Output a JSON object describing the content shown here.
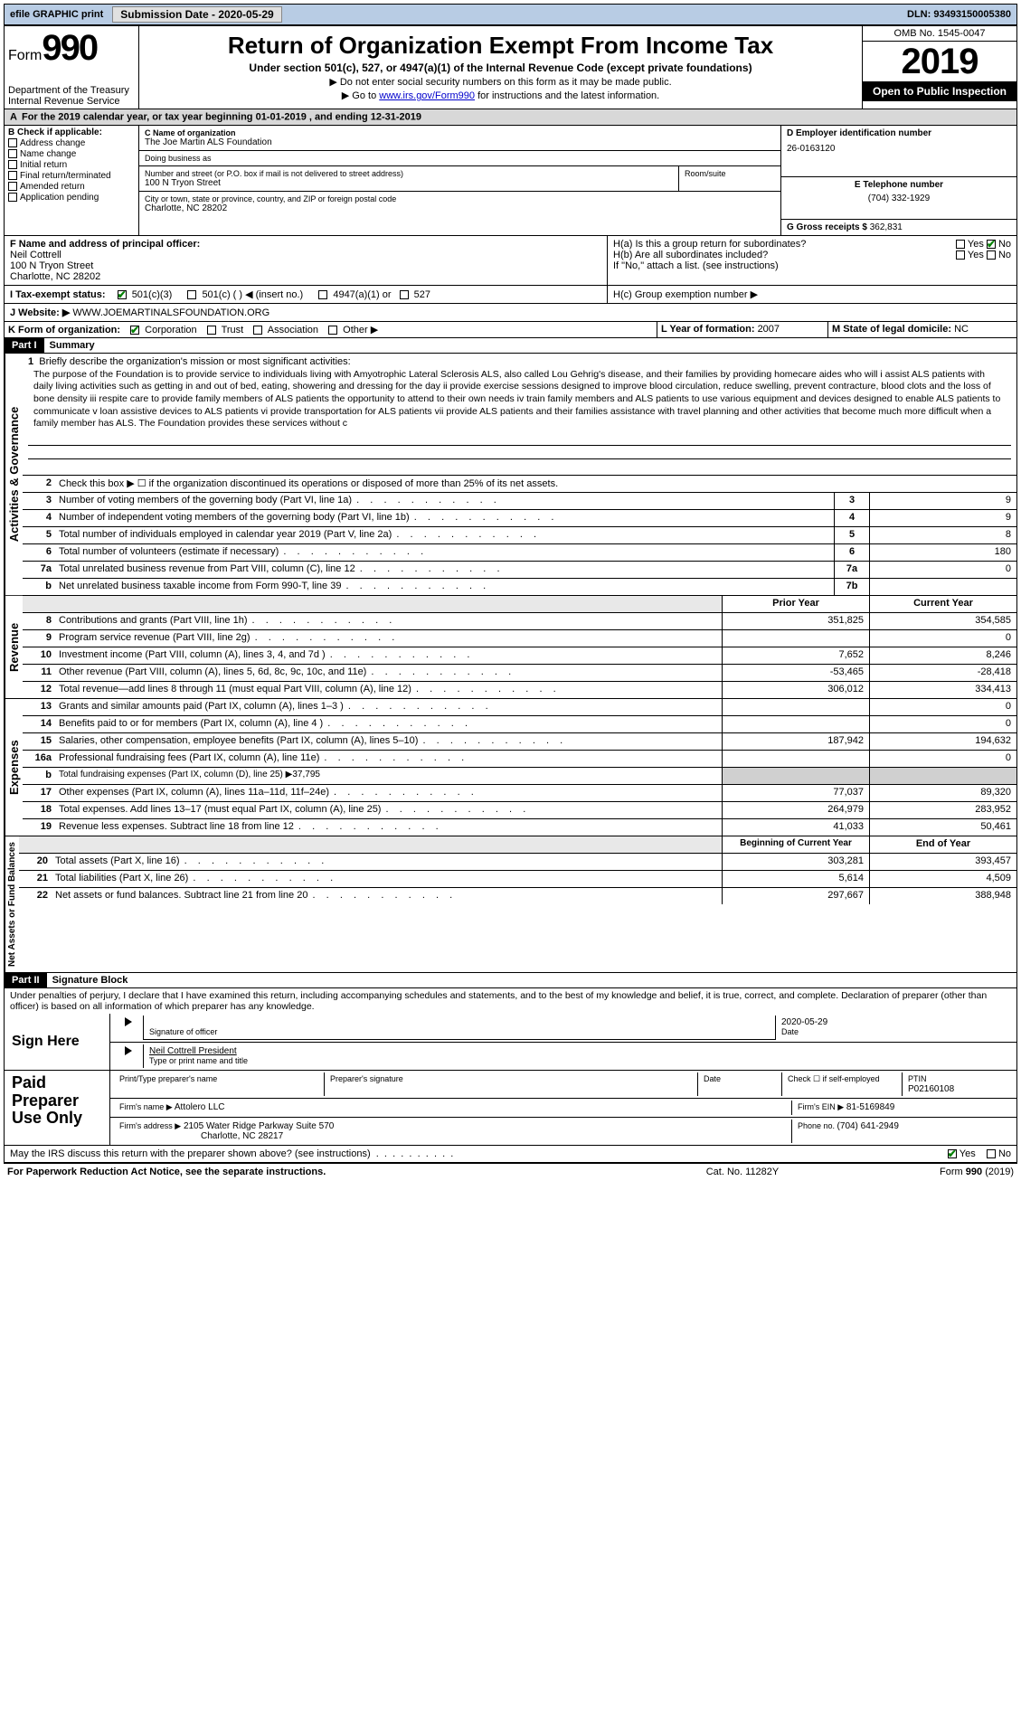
{
  "topbar": {
    "efile": "efile GRAPHIC print",
    "sub_label": "Submission Date - ",
    "sub_date": "2020-05-29",
    "dln_label": "DLN: ",
    "dln": "93493150005380"
  },
  "header": {
    "form_word": "Form",
    "form_num": "990",
    "dept": "Department of the Treasury",
    "irs": "Internal Revenue Service",
    "title": "Return of Organization Exempt From Income Tax",
    "subtitle": "Under section 501(c), 527, or 4947(a)(1) of the Internal Revenue Code (except private foundations)",
    "instr1": "▶ Do not enter social security numbers on this form as it may be made public.",
    "instr2_pre": "▶ Go to ",
    "instr2_link": "www.irs.gov/Form990",
    "instr2_post": " for instructions and the latest information.",
    "omb": "OMB No. 1545-0047",
    "year": "2019",
    "open": "Open to Public Inspection"
  },
  "period": "For the 2019 calendar year, or tax year beginning 01-01-2019   , and ending 12-31-2019",
  "box_b": {
    "title": "B Check if applicable:",
    "items": [
      "Address change",
      "Name change",
      "Initial return",
      "Final return/terminated",
      "Amended return",
      "Application pending"
    ]
  },
  "box_c": {
    "label": "C Name of organization",
    "name": "The Joe Martin ALS Foundation",
    "dba_label": "Doing business as",
    "dba": "",
    "addr_label": "Number and street (or P.O. box if mail is not delivered to street address)",
    "room_label": "Room/suite",
    "addr": "100 N Tryon Street",
    "city_label": "City or town, state or province, country, and ZIP or foreign postal code",
    "city": "Charlotte, NC  28202"
  },
  "box_d": {
    "label": "D Employer identification number",
    "ein": "26-0163120"
  },
  "box_e": {
    "label": "E Telephone number",
    "phone": "(704) 332-1929"
  },
  "box_g": {
    "label": "G Gross receipts $ ",
    "amount": "362,831"
  },
  "box_f": {
    "label": "F  Name and address of principal officer:",
    "name": "Neil Cottrell",
    "addr1": "100 N Tryon Street",
    "addr2": "Charlotte, NC  28202"
  },
  "box_h": {
    "ha": "H(a)  Is this a group return for subordinates?",
    "hb": "H(b)  Are all subordinates included?",
    "hb_note": "If \"No,\" attach a list. (see instructions)",
    "hc": "H(c)  Group exemption number ▶",
    "yes": "Yes",
    "no": "No"
  },
  "box_i": {
    "label": "I   Tax-exempt status:",
    "o1": "501(c)(3)",
    "o2": "501(c) (   ) ◀ (insert no.)",
    "o3": "4947(a)(1) or",
    "o4": "527"
  },
  "box_j": {
    "label": "J   Website: ▶",
    "url": "WWW.JOEMARTINALSFOUNDATION.ORG"
  },
  "box_k": {
    "label": "K Form of organization:",
    "o1": "Corporation",
    "o2": "Trust",
    "o3": "Association",
    "o4": "Other ▶"
  },
  "box_l": {
    "label": "L Year of formation: ",
    "val": "2007"
  },
  "box_m": {
    "label": "M State of legal domicile: ",
    "val": "NC"
  },
  "part1": {
    "num": "Part I",
    "title": "Summary",
    "vert1": "Activities & Governance",
    "vert2": "Revenue",
    "vert3": "Expenses",
    "vert4": "Net Assets or Fund Balances",
    "line1_label": "Briefly describe the organization's mission or most significant activities:",
    "mission": "The purpose of the Foundation is to provide service to individuals living with Amyotrophic Lateral Sclerosis ALS, also called Lou Gehrig's disease, and their families by providing homecare aides who will i assist ALS patients with daily living activities such as getting in and out of bed, eating, showering and dressing for the day ii provide exercise sessions designed to improve blood circulation, reduce swelling, prevent contracture, blood clots and the loss of bone density iii respite care to provide family members of ALS patients the opportunity to attend to their own needs iv train family members and ALS patients to use various equipment and devices designed to enable ALS patients to communicate v loan assistive devices to ALS patients vi provide transportation for ALS patients vii provide ALS patients and their families assistance with travel planning and other activities that become much more difficult when a family member has ALS. The Foundation provides these services without c",
    "line2": "Check this box ▶ ☐ if the organization discontinued its operations or disposed of more than 25% of its net assets.",
    "lines_gov": [
      {
        "n": "3",
        "d": "Number of voting members of the governing body (Part VI, line 1a)",
        "box": "3",
        "v": "9"
      },
      {
        "n": "4",
        "d": "Number of independent voting members of the governing body (Part VI, line 1b)",
        "box": "4",
        "v": "9"
      },
      {
        "n": "5",
        "d": "Total number of individuals employed in calendar year 2019 (Part V, line 2a)",
        "box": "5",
        "v": "8"
      },
      {
        "n": "6",
        "d": "Total number of volunteers (estimate if necessary)",
        "box": "6",
        "v": "180"
      },
      {
        "n": "7a",
        "d": "Total unrelated business revenue from Part VIII, column (C), line 12",
        "box": "7a",
        "v": "0"
      },
      {
        "n": "b",
        "d": "Net unrelated business taxable income from Form 990-T, line 39",
        "box": "7b",
        "v": ""
      }
    ],
    "hdr_prior": "Prior Year",
    "hdr_current": "Current Year",
    "lines_rev": [
      {
        "n": "8",
        "d": "Contributions and grants (Part VIII, line 1h)",
        "p": "351,825",
        "c": "354,585"
      },
      {
        "n": "9",
        "d": "Program service revenue (Part VIII, line 2g)",
        "p": "",
        "c": "0"
      },
      {
        "n": "10",
        "d": "Investment income (Part VIII, column (A), lines 3, 4, and 7d )",
        "p": "7,652",
        "c": "8,246"
      },
      {
        "n": "11",
        "d": "Other revenue (Part VIII, column (A), lines 5, 6d, 8c, 9c, 10c, and 11e)",
        "p": "-53,465",
        "c": "-28,418"
      },
      {
        "n": "12",
        "d": "Total revenue—add lines 8 through 11 (must equal Part VIII, column (A), line 12)",
        "p": "306,012",
        "c": "334,413"
      }
    ],
    "lines_exp": [
      {
        "n": "13",
        "d": "Grants and similar amounts paid (Part IX, column (A), lines 1–3 )",
        "p": "",
        "c": "0"
      },
      {
        "n": "14",
        "d": "Benefits paid to or for members (Part IX, column (A), line 4 )",
        "p": "",
        "c": "0"
      },
      {
        "n": "15",
        "d": "Salaries, other compensation, employee benefits (Part IX, column (A), lines 5–10)",
        "p": "187,942",
        "c": "194,632"
      },
      {
        "n": "16a",
        "d": "Professional fundraising fees (Part IX, column (A), line 11e)",
        "p": "",
        "c": "0"
      },
      {
        "n": "b",
        "d": "Total fundraising expenses (Part IX, column (D), line 25) ▶37,795",
        "p": null,
        "c": null,
        "shade": true
      },
      {
        "n": "17",
        "d": "Other expenses (Part IX, column (A), lines 11a–11d, 11f–24e)",
        "p": "77,037",
        "c": "89,320"
      },
      {
        "n": "18",
        "d": "Total expenses. Add lines 13–17 (must equal Part IX, column (A), line 25)",
        "p": "264,979",
        "c": "283,952"
      },
      {
        "n": "19",
        "d": "Revenue less expenses. Subtract line 18 from line 12",
        "p": "41,033",
        "c": "50,461"
      }
    ],
    "hdr_begin": "Beginning of Current Year",
    "hdr_end": "End of Year",
    "lines_net": [
      {
        "n": "20",
        "d": "Total assets (Part X, line 16)",
        "p": "303,281",
        "c": "393,457"
      },
      {
        "n": "21",
        "d": "Total liabilities (Part X, line 26)",
        "p": "5,614",
        "c": "4,509"
      },
      {
        "n": "22",
        "d": "Net assets or fund balances. Subtract line 21 from line 20",
        "p": "297,667",
        "c": "388,948"
      }
    ]
  },
  "part2": {
    "num": "Part II",
    "title": "Signature Block",
    "decl": "Under penalties of perjury, I declare that I have examined this return, including accompanying schedules and statements, and to the best of my knowledge and belief, it is true, correct, and complete. Declaration of preparer (other than officer) is based on all information of which preparer has any knowledge.",
    "sign_here": "Sign Here",
    "sig_officer": "Signature of officer",
    "date": "Date",
    "sig_date": "2020-05-29",
    "officer_name": "Neil Cottrell  President",
    "type_name": "Type or print name and title",
    "paid": "Paid Preparer Use Only",
    "prep_name_label": "Print/Type preparer's name",
    "prep_sig_label": "Preparer's signature",
    "prep_date_label": "Date",
    "check_self": "Check ☐ if self-employed",
    "ptin_label": "PTIN",
    "ptin": "P02160108",
    "firm_name_label": "Firm's name    ▶",
    "firm_name": "Attolero LLC",
    "firm_ein_label": "Firm's EIN ▶",
    "firm_ein": "81-5169849",
    "firm_addr_label": "Firm's address ▶",
    "firm_addr1": "2105 Water Ridge Parkway Suite 570",
    "firm_addr2": "Charlotte, NC  28217",
    "phone_label": "Phone no. ",
    "phone": "(704) 641-2949",
    "discuss": "May the IRS discuss this return with the preparer shown above? (see instructions)",
    "yes": "Yes",
    "no": "No"
  },
  "footer": {
    "left": "For Paperwork Reduction Act Notice, see the separate instructions.",
    "mid": "Cat. No. 11282Y",
    "right_a": "Form ",
    "right_b": "990",
    "right_c": " (2019)"
  }
}
